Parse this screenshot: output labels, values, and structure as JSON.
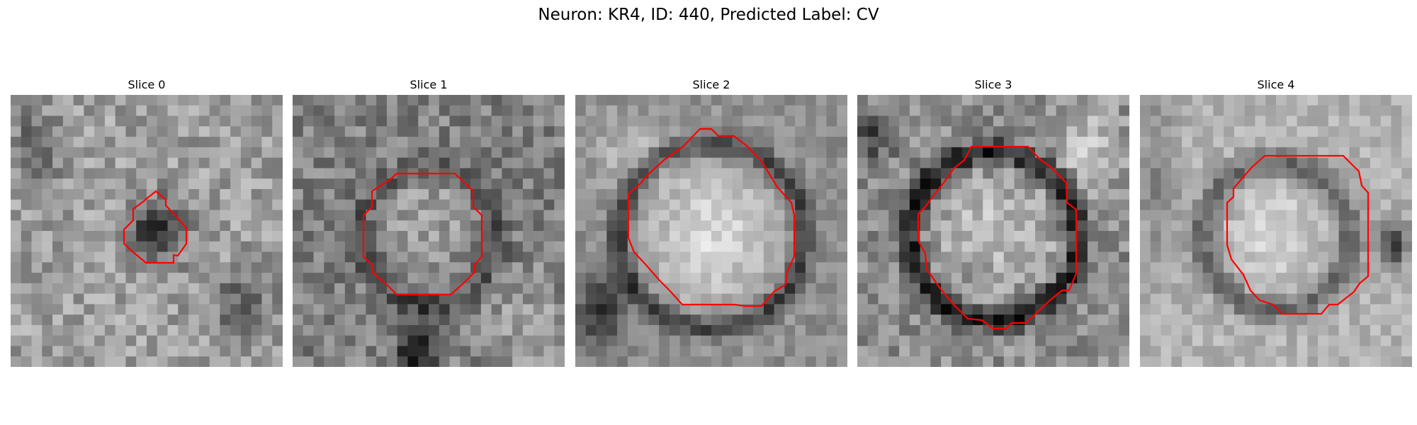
{
  "figure": {
    "title": "Neuron: KR4, ID: 440, Predicted Label: CV",
    "panels": [
      {
        "title": "Slice 0",
        "seed": 11,
        "mode": "dark-center",
        "contour_color": "#ff0000"
      },
      {
        "title": "Slice 1",
        "seed": 23,
        "mode": "ring-grey",
        "contour_color": "#ff0000"
      },
      {
        "title": "Slice 2",
        "seed": 37,
        "mode": "bright-large",
        "contour_color": "#ff0000"
      },
      {
        "title": "Slice 3",
        "seed": 51,
        "mode": "ring-dark",
        "contour_color": "#ff0000"
      },
      {
        "title": "Slice 4",
        "seed": 67,
        "mode": "ring-light",
        "contour_color": "#ff0000"
      }
    ],
    "colormap": "grayscale",
    "contour_color": "#ff0000"
  }
}
